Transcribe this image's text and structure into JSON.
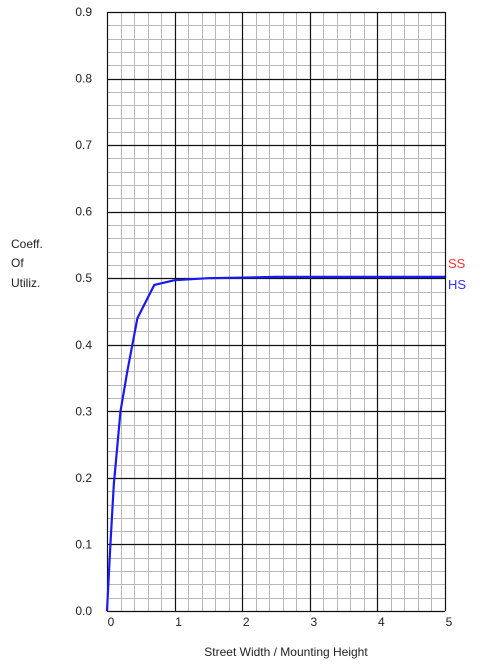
{
  "chart_data": {
    "type": "line",
    "title": "",
    "xlabel": "Street Width / Mounting Height",
    "ylabel_lines": [
      "Coeff.",
      "Of",
      "Utiliz."
    ],
    "xlim": [
      0,
      5
    ],
    "ylim": [
      0,
      0.9
    ],
    "x_ticks": [
      "0",
      "1",
      "2",
      "3",
      "4",
      "5"
    ],
    "y_ticks": [
      "0.0",
      "0.1",
      "0.2",
      "0.3",
      "0.4",
      "0.5",
      "0.6",
      "0.7",
      "0.8",
      "0.9"
    ],
    "grid": true,
    "legend_position": "right",
    "legend": [
      {
        "label": "SS",
        "color": "#ff3333"
      },
      {
        "label": "HS",
        "color": "#3333ff"
      }
    ],
    "series": [
      {
        "color": "#1a1aee",
        "x": [
          0,
          0.05,
          0.1,
          0.2,
          0.3,
          0.45,
          0.7,
          1.0,
          1.5,
          2.0,
          2.5,
          3.0,
          4.0,
          5.0
        ],
        "y": [
          0.0,
          0.1,
          0.19,
          0.3,
          0.36,
          0.44,
          0.49,
          0.497,
          0.5,
          0.501,
          0.502,
          0.502,
          0.502,
          0.502
        ]
      }
    ]
  }
}
